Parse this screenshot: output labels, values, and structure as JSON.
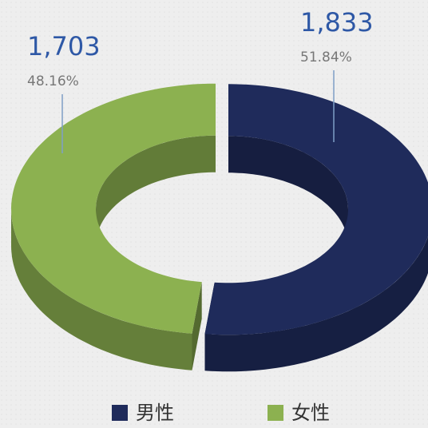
{
  "chart_data": {
    "type": "donut3d",
    "categories": [
      "男性",
      "女性"
    ],
    "values": [
      1833,
      1703
    ],
    "value_labels": [
      "1,833",
      "1,703"
    ],
    "percentages": [
      51.84,
      48.16
    ],
    "percentage_labels": [
      "51.84%",
      "48.16%"
    ],
    "colors": [
      "#1f2b5b",
      "#8cb150"
    ],
    "legend": "bottom"
  }
}
